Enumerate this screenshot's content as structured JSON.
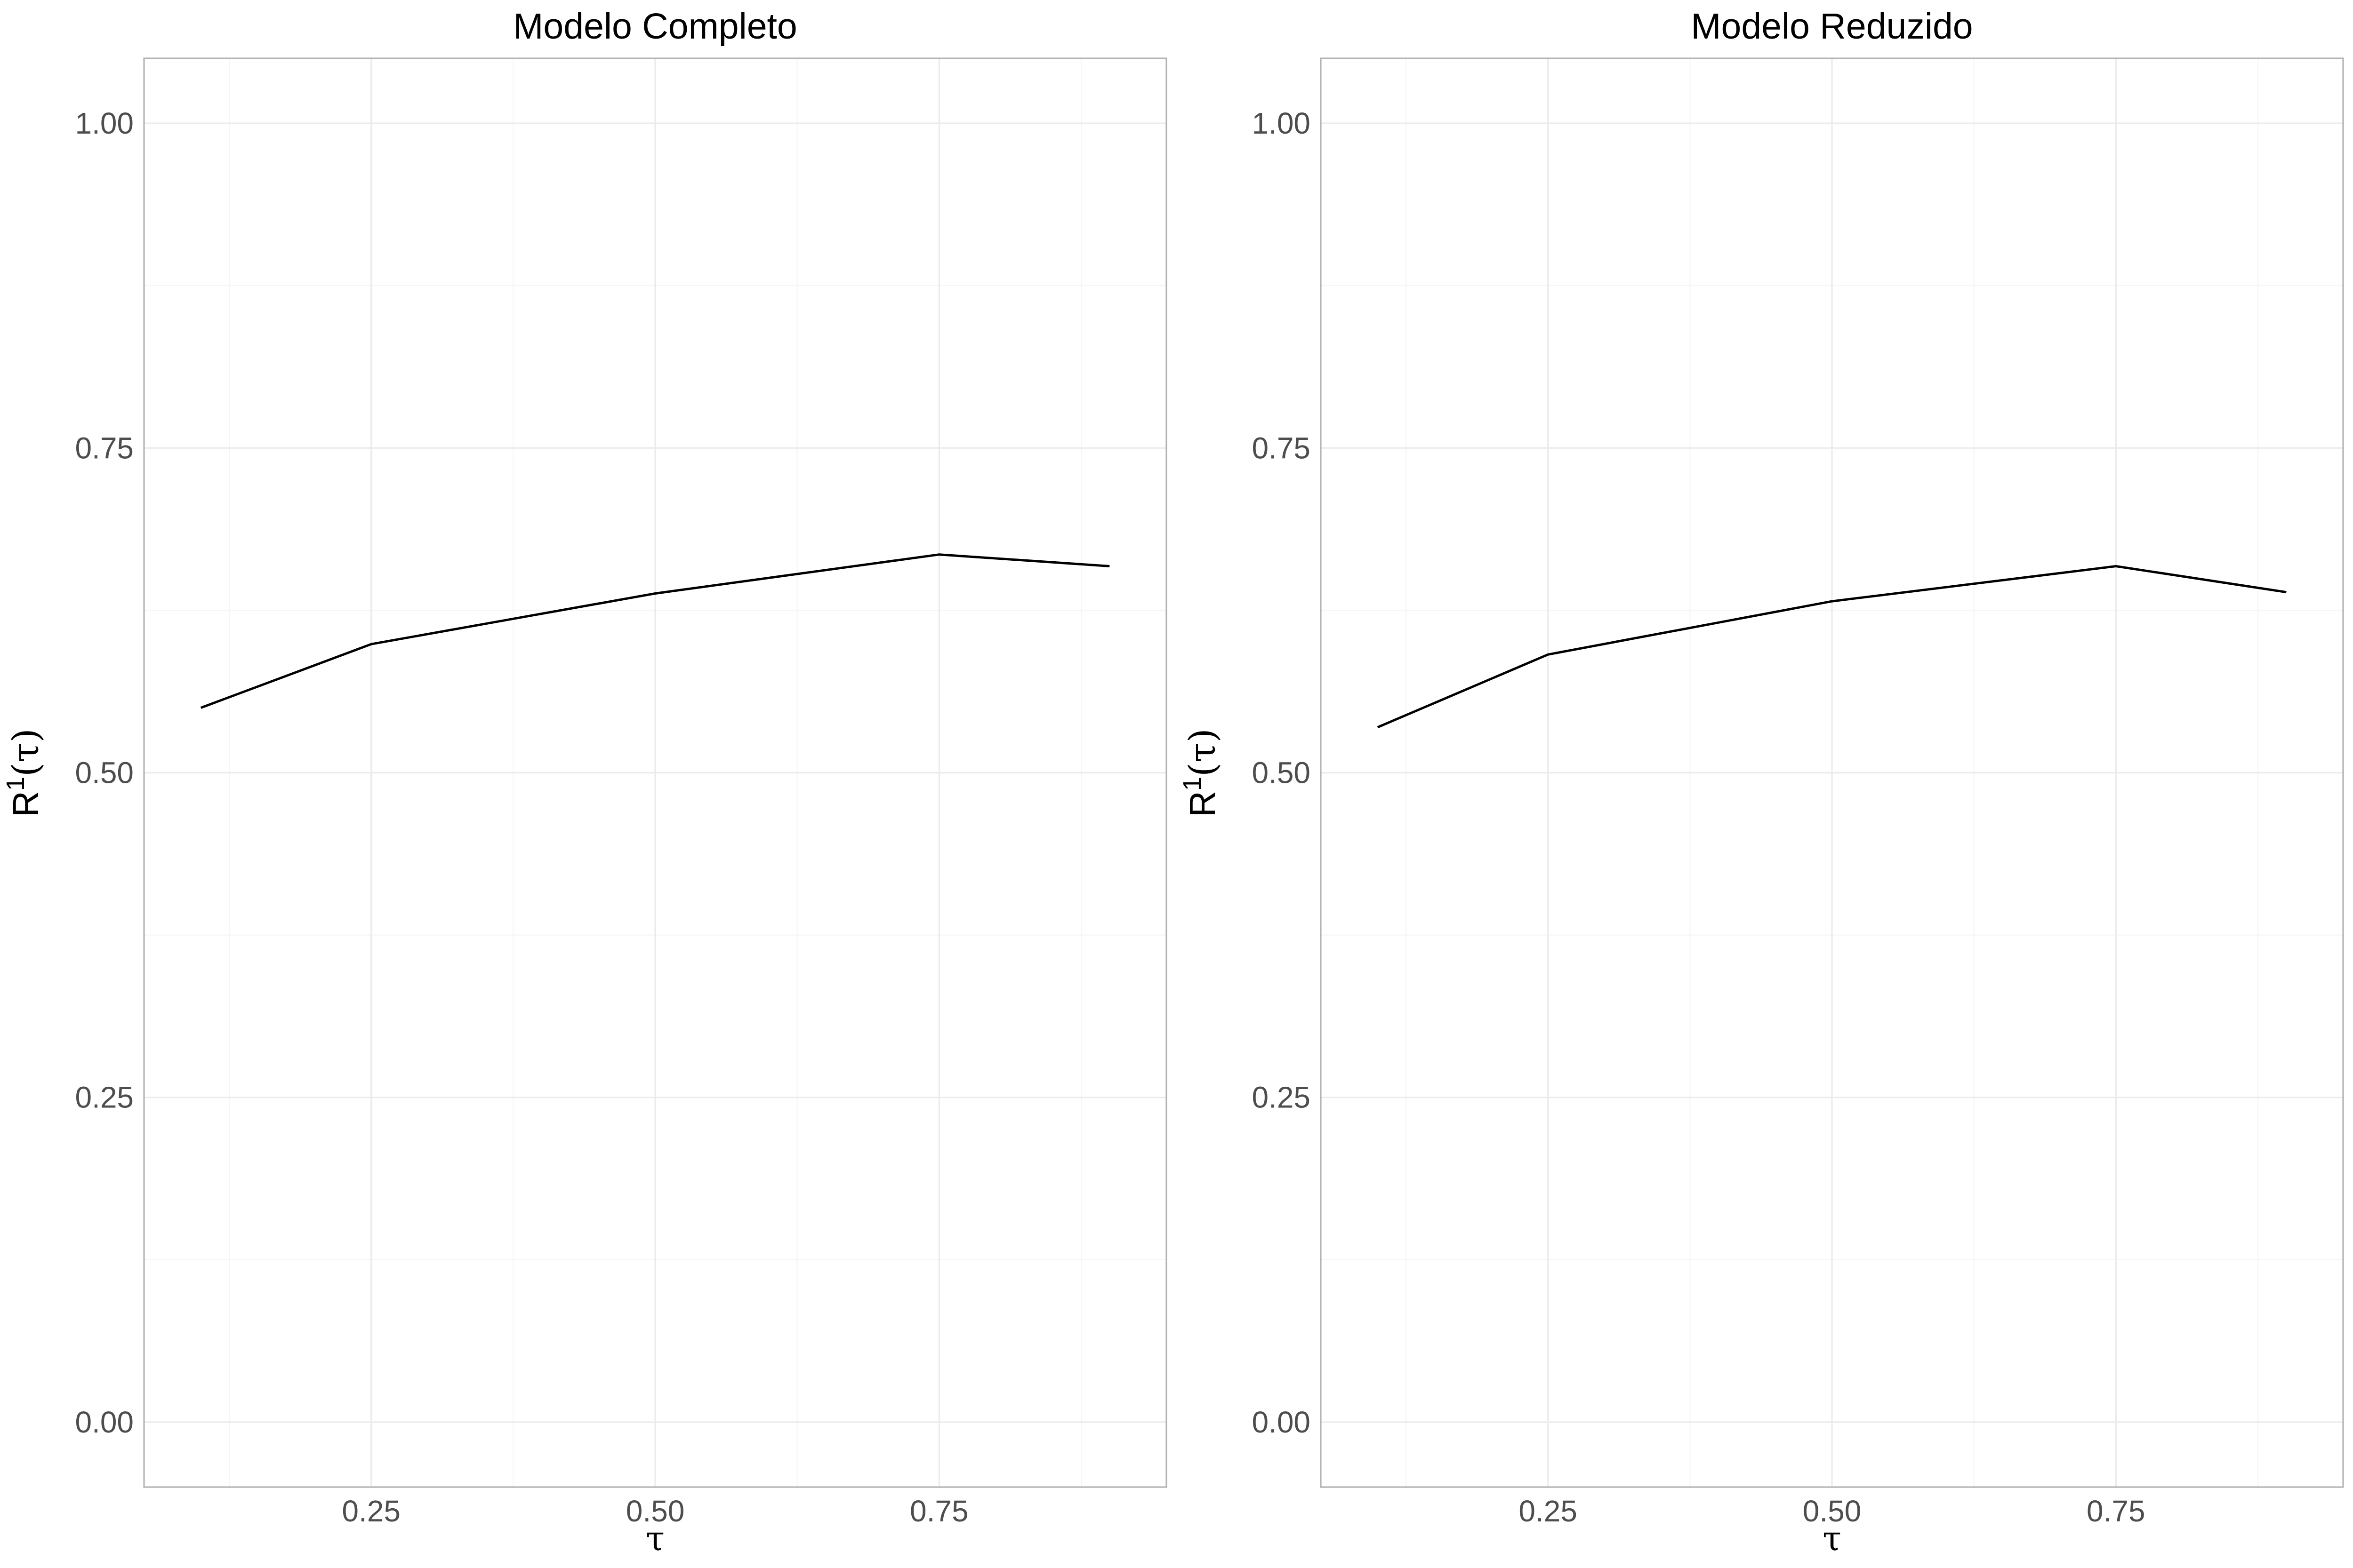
{
  "chart_data": [
    {
      "type": "line",
      "title": "Modelo Completo",
      "xlabel": "τ",
      "ylabel": "R¹(τ)",
      "ylabel_parts": {
        "base": "R",
        "sup": "1",
        "arg": "(τ)"
      },
      "x": [
        0.1,
        0.25,
        0.5,
        0.75,
        0.9
      ],
      "series": [
        {
          "values": [
            0.55,
            0.599,
            0.638,
            0.668,
            0.659
          ]
        }
      ],
      "xlim": [
        0.05,
        0.95
      ],
      "ylim": [
        -0.05,
        1.05
      ],
      "xticks": [
        0.25,
        0.5,
        0.75
      ],
      "xtick_labels": [
        "0.25",
        "0.50",
        "0.75"
      ],
      "yticks": [
        0,
        0.25,
        0.5,
        0.75,
        1
      ],
      "ytick_labels": [
        "0.00",
        "0.25",
        "0.50",
        "0.75",
        "1.00"
      ],
      "grid": true,
      "line_color": "#000000"
    },
    {
      "type": "line",
      "title": "Modelo Reduzido",
      "xlabel": "τ",
      "ylabel": "R¹(τ)",
      "ylabel_parts": {
        "base": "R",
        "sup": "1",
        "arg": "(τ)"
      },
      "x": [
        0.1,
        0.25,
        0.5,
        0.75,
        0.9
      ],
      "series": [
        {
          "values": [
            0.535,
            0.591,
            0.632,
            0.659,
            0.639
          ]
        }
      ],
      "xlim": [
        0.05,
        0.95
      ],
      "ylim": [
        -0.05,
        1.05
      ],
      "xticks": [
        0.25,
        0.5,
        0.75
      ],
      "xtick_labels": [
        "0.25",
        "0.50",
        "0.75"
      ],
      "yticks": [
        0,
        0.25,
        0.5,
        0.75,
        1
      ],
      "ytick_labels": [
        "0.00",
        "0.25",
        "0.50",
        "0.75",
        "1.00"
      ],
      "grid": true,
      "line_color": "#000000"
    }
  ]
}
